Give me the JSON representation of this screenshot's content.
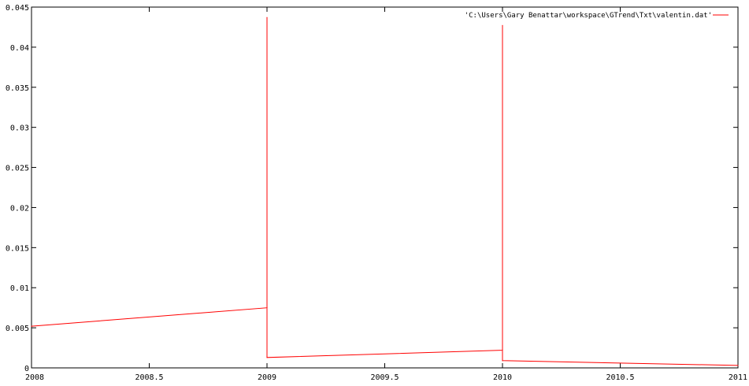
{
  "chart_data": {
    "type": "line",
    "title": "",
    "xlabel": "",
    "ylabel": "",
    "xlim": [
      2008,
      2011
    ],
    "ylim": [
      0,
      0.045
    ],
    "grid": false,
    "legend_position": "top-right",
    "x_ticks": [
      2008,
      2008.5,
      2009,
      2009.5,
      2010,
      2010.5,
      2011
    ],
    "x_tick_labels": [
      "2008",
      "2008.5",
      "2009",
      "2009.5",
      "2010",
      "2010.5",
      "2011"
    ],
    "y_ticks": [
      0,
      0.005,
      0.01,
      0.015,
      0.02,
      0.025,
      0.03,
      0.035,
      0.04,
      0.045
    ],
    "y_tick_labels": [
      "0",
      "0.005",
      "0.01",
      "0.015",
      "0.02",
      "0.025",
      "0.03",
      "0.035",
      "0.04",
      "0.045"
    ],
    "series": [
      {
        "name": "'C:\\Users\\Gary Benattar\\workspace\\GTrend\\Txt\\valentin.dat'",
        "color": "#ff0000",
        "x": [
          2008,
          2009,
          2009,
          2009,
          2010,
          2010,
          2010,
          2011
        ],
        "y": [
          0.0052,
          0.0075,
          0.0437,
          0.0013,
          0.0022,
          0.0427,
          0.0009,
          0.0003
        ]
      }
    ]
  }
}
